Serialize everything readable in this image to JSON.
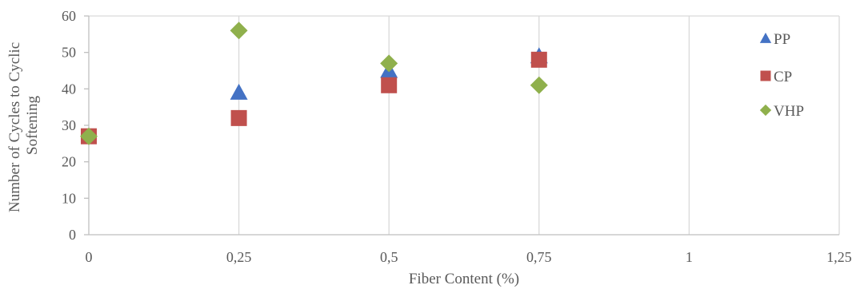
{
  "chart_data": {
    "type": "scatter",
    "xlabel": "Fiber Content (%)",
    "ylabel_lines": [
      "Number of Cycles to Cyclic",
      "Softening"
    ],
    "xlim": [
      0,
      1.25
    ],
    "ylim": [
      0,
      60
    ],
    "x_ticks": [
      {
        "value": 0,
        "label": "0"
      },
      {
        "value": 0.25,
        "label": "0,25"
      },
      {
        "value": 0.5,
        "label": "0,5"
      },
      {
        "value": 0.75,
        "label": "0,75"
      },
      {
        "value": 1,
        "label": "1"
      },
      {
        "value": 1.25,
        "label": "1,25"
      }
    ],
    "y_ticks": [
      {
        "value": 0,
        "label": "0"
      },
      {
        "value": 10,
        "label": "10"
      },
      {
        "value": 20,
        "label": "20"
      },
      {
        "value": 30,
        "label": "30"
      },
      {
        "value": 40,
        "label": "40"
      },
      {
        "value": 50,
        "label": "50"
      },
      {
        "value": 60,
        "label": "60"
      }
    ],
    "grid": {
      "vertical": true,
      "horizontal": false
    },
    "legend_position": "right",
    "series": [
      {
        "name": "PP",
        "marker": "triangle",
        "color": "#4472c4",
        "x": [
          0.25,
          0.5,
          0.75
        ],
        "y": [
          39,
          45,
          49
        ]
      },
      {
        "name": "CP",
        "marker": "square",
        "color": "#c0504d",
        "x": [
          0,
          0.25,
          0.5,
          0.75
        ],
        "y": [
          27,
          32,
          41,
          48
        ]
      },
      {
        "name": "VHP",
        "marker": "diamond",
        "color": "#8fb04c",
        "x": [
          0,
          0.25,
          0.5,
          0.75
        ],
        "y": [
          27,
          56,
          47,
          41
        ]
      }
    ]
  }
}
